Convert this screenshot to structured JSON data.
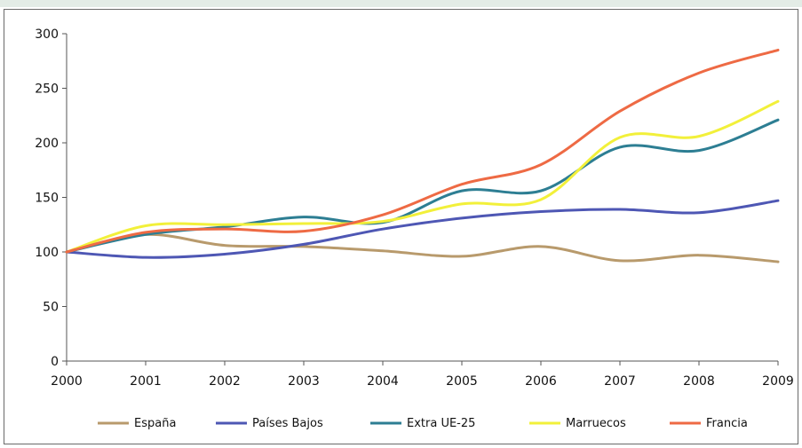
{
  "chart_data": {
    "type": "line",
    "title": "",
    "xlabel": "",
    "ylabel": "",
    "x": [
      "2000",
      "2001",
      "2002",
      "2003",
      "2004",
      "2005",
      "2006",
      "2007",
      "2008",
      "2009"
    ],
    "ylim": [
      0,
      300
    ],
    "yticks": [
      0,
      50,
      100,
      150,
      200,
      250,
      300
    ],
    "grid": false,
    "legend_position": "bottom",
    "series": [
      {
        "name": "España",
        "color": "#b89a6c",
        "values": [
          100,
          116,
          106,
          105,
          101,
          96,
          105,
          92,
          97,
          91
        ]
      },
      {
        "name": "Países Bajos",
        "color": "#4e57b4",
        "values": [
          100,
          95,
          98,
          107,
          121,
          131,
          137,
          139,
          136,
          147
        ]
      },
      {
        "name": "Extra UE-25",
        "color": "#2d7e93",
        "values": [
          100,
          116,
          123,
          132,
          127,
          156,
          156,
          196,
          193,
          221
        ]
      },
      {
        "name": "Marruecos",
        "color": "#f2f03a",
        "values": [
          100,
          124,
          125,
          126,
          128,
          144,
          148,
          205,
          206,
          238
        ]
      },
      {
        "name": "Francia",
        "color": "#ee6a44",
        "values": [
          100,
          118,
          121,
          119,
          134,
          162,
          180,
          229,
          264,
          285
        ]
      }
    ]
  }
}
